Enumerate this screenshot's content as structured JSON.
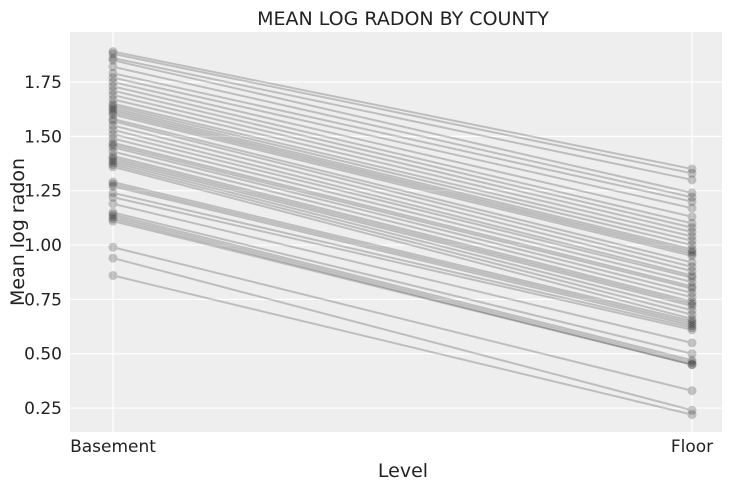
{
  "chart_data": {
    "type": "line",
    "title": "MEAN LOG RADON BY COUNTY",
    "xlabel": "Level",
    "ylabel": "Mean log radon",
    "categories": [
      "Basement",
      "Floor"
    ],
    "ylim": [
      0.14,
      1.98
    ],
    "yticks": [
      "0.25",
      "0.50",
      "0.75",
      "1.00",
      "1.25",
      "1.50",
      "1.75"
    ],
    "grid": true,
    "background": "#eeeeee",
    "line_color": "#000000",
    "line_alpha": 0.2,
    "basement": [
      1.89,
      1.88,
      1.86,
      1.85,
      1.82,
      1.79,
      1.77,
      1.75,
      1.73,
      1.71,
      1.69,
      1.67,
      1.65,
      1.64,
      1.63,
      1.62,
      1.61,
      1.6,
      1.58,
      1.57,
      1.55,
      1.53,
      1.51,
      1.49,
      1.47,
      1.46,
      1.45,
      1.43,
      1.41,
      1.4,
      1.39,
      1.38,
      1.37,
      1.36,
      1.29,
      1.28,
      1.27,
      1.24,
      1.22,
      1.19,
      1.15,
      1.14,
      1.13,
      1.12,
      1.11,
      0.99,
      0.94,
      0.86
    ],
    "floor": [
      1.35,
      1.33,
      1.3,
      1.24,
      1.22,
      1.2,
      1.17,
      1.13,
      1.1,
      1.08,
      1.06,
      1.04,
      1.02,
      1.0,
      0.98,
      0.97,
      0.96,
      0.95,
      0.92,
      0.9,
      0.88,
      0.86,
      0.85,
      0.83,
      0.81,
      0.8,
      0.78,
      0.76,
      0.74,
      0.73,
      0.72,
      0.7,
      0.68,
      0.66,
      0.65,
      0.64,
      0.63,
      0.62,
      0.61,
      0.55,
      0.5,
      0.47,
      0.46,
      0.45,
      0.45,
      0.33,
      0.24,
      0.22
    ]
  }
}
